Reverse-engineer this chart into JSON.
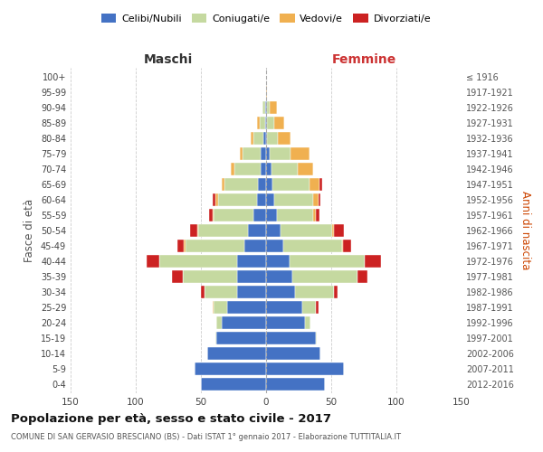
{
  "age_groups": [
    "0-4",
    "5-9",
    "10-14",
    "15-19",
    "20-24",
    "25-29",
    "30-34",
    "35-39",
    "40-44",
    "45-49",
    "50-54",
    "55-59",
    "60-64",
    "65-69",
    "70-74",
    "75-79",
    "80-84",
    "85-89",
    "90-94",
    "95-99",
    "100+"
  ],
  "birth_years": [
    "2012-2016",
    "2007-2011",
    "2002-2006",
    "1997-2001",
    "1992-1996",
    "1987-1991",
    "1982-1986",
    "1977-1981",
    "1972-1976",
    "1967-1971",
    "1962-1966",
    "1957-1961",
    "1952-1956",
    "1947-1951",
    "1942-1946",
    "1937-1941",
    "1932-1936",
    "1927-1931",
    "1922-1926",
    "1917-1921",
    "≤ 1916"
  ],
  "male_celibi": [
    50,
    55,
    45,
    38,
    34,
    30,
    22,
    22,
    22,
    17,
    14,
    10,
    7,
    6,
    4,
    4,
    2,
    1,
    1,
    0,
    0
  ],
  "male_coniugati": [
    0,
    0,
    0,
    1,
    4,
    10,
    25,
    42,
    60,
    45,
    38,
    30,
    30,
    26,
    20,
    14,
    8,
    4,
    2,
    0,
    0
  ],
  "male_vedovi": [
    0,
    0,
    0,
    0,
    0,
    1,
    0,
    0,
    0,
    1,
    1,
    1,
    2,
    2,
    3,
    2,
    2,
    2,
    0,
    0,
    0
  ],
  "male_divorziati": [
    0,
    0,
    0,
    0,
    0,
    0,
    3,
    8,
    10,
    5,
    5,
    3,
    2,
    0,
    0,
    0,
    0,
    0,
    0,
    0,
    0
  ],
  "female_celibi": [
    45,
    60,
    42,
    38,
    30,
    28,
    22,
    20,
    18,
    13,
    11,
    8,
    6,
    5,
    4,
    3,
    1,
    1,
    1,
    0,
    0
  ],
  "female_coniugati": [
    0,
    0,
    0,
    1,
    4,
    10,
    30,
    50,
    58,
    45,
    40,
    28,
    30,
    28,
    20,
    16,
    8,
    5,
    2,
    0,
    0
  ],
  "female_vedovi": [
    0,
    0,
    0,
    0,
    0,
    0,
    0,
    0,
    0,
    1,
    1,
    2,
    4,
    8,
    12,
    14,
    10,
    8,
    5,
    1,
    0
  ],
  "female_divorziati": [
    0,
    0,
    0,
    0,
    0,
    2,
    3,
    8,
    12,
    6,
    8,
    3,
    2,
    2,
    0,
    0,
    0,
    0,
    0,
    0,
    0
  ],
  "color_celibi": "#4472c4",
  "color_coniugati": "#c5d9a0",
  "color_vedovi": "#f0b050",
  "color_divorziati": "#cc2222",
  "title": "Popolazione per età, sesso e stato civile - 2017",
  "subtitle": "COMUNE DI SAN GERVASIO BRESCIANO (BS) - Dati ISTAT 1° gennaio 2017 - Elaborazione TUTTITALIA.IT",
  "ylabel_left": "Fasce di età",
  "ylabel_right": "Anni di nascita",
  "xlabel_left": "Maschi",
  "xlabel_right": "Femmine",
  "xlim": 150,
  "background_color": "#ffffff",
  "grid_color": "#cccccc"
}
